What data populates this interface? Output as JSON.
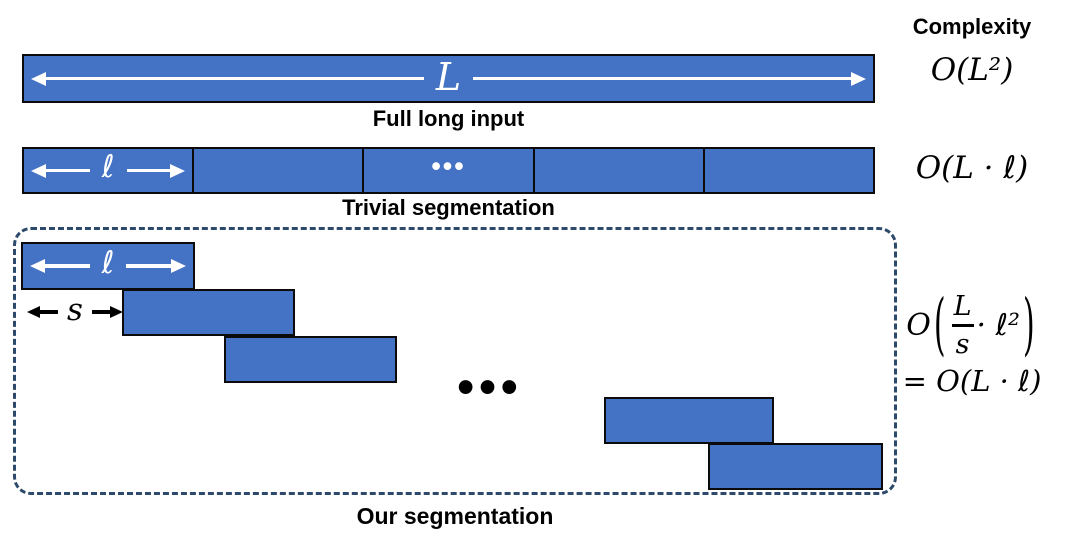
{
  "colors": {
    "bar_fill": "#4472C4",
    "bar_border": "#0B0B0B",
    "dashed_border": "#2E4A6B",
    "arrow_on_bar": "#FFFFFF",
    "text": "#000000"
  },
  "complexity_column": {
    "header": "Complexity",
    "full_input_formula": "O(L²)",
    "trivial_formula": "O(L · ℓ)",
    "ours_formula": {
      "big_o": "O",
      "open_paren": "(",
      "fraction_numerator": "L",
      "fraction_denominator": "s",
      "dot_term": "· ℓ²",
      "close_paren": ")",
      "second_line": "= O(L · ℓ)"
    }
  },
  "full_input_row": {
    "length_label": "L",
    "caption": "Full long input"
  },
  "trivial_row": {
    "segment_length_label": "ℓ",
    "ellipsis": "•••",
    "caption": "Trivial segmentation"
  },
  "our_row": {
    "segment_length_label": "ℓ",
    "stride_label": "s",
    "ellipsis": "•••",
    "caption": "Our segmentation"
  }
}
